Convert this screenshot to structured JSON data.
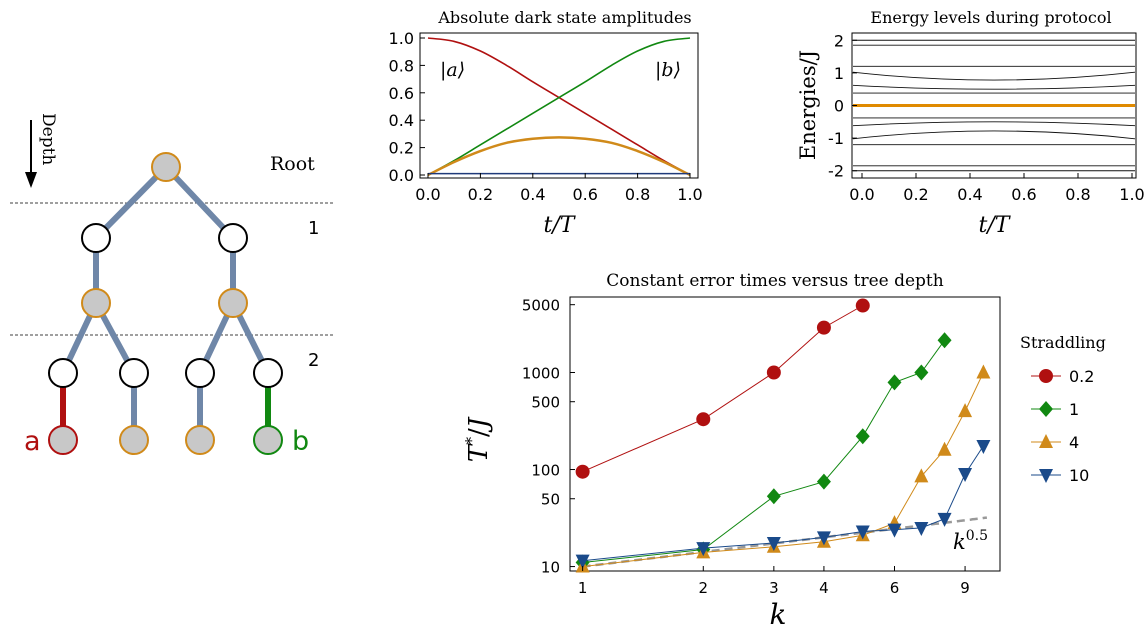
{
  "tree": {
    "depth_label": "Depth",
    "root_label": "Root",
    "level_labels": [
      "1",
      "2"
    ],
    "leaf_a_label": "a",
    "leaf_b_label": "b",
    "colors": {
      "edge": "#6f87a8",
      "edge_a": "#b01010",
      "edge_b": "#118811",
      "node_gray_fill": "#c8c8c8",
      "node_gray_stroke": "#d08a1a"
    }
  },
  "chart_data": [
    {
      "type": "line",
      "title": "Absolute dark state amplitudes",
      "xlabel": "t/T",
      "ylabel": "",
      "xlim": [
        0,
        1
      ],
      "ylim": [
        0,
        1
      ],
      "xticks": [
        "0.0",
        "0.2",
        "0.4",
        "0.6",
        "0.8",
        "1.0"
      ],
      "yticks": [
        "0.0",
        "0.2",
        "0.4",
        "0.6",
        "0.8",
        "1.0"
      ],
      "annotations": [
        "|a⟩",
        "|b⟩"
      ],
      "x": [
        0,
        0.1,
        0.2,
        0.3,
        0.4,
        0.5,
        0.6,
        0.7,
        0.8,
        0.9,
        1.0
      ],
      "series": [
        {
          "color": "#b01010",
          "values": [
            1.0,
            0.975,
            0.905,
            0.8,
            0.68,
            0.565,
            0.45,
            0.335,
            0.22,
            0.105,
            0.0
          ]
        },
        {
          "color": "#118811",
          "values": [
            0.0,
            0.105,
            0.22,
            0.335,
            0.45,
            0.565,
            0.68,
            0.8,
            0.905,
            0.975,
            1.0
          ]
        },
        {
          "color": "#d08a1a",
          "values": [
            0.0,
            0.095,
            0.175,
            0.235,
            0.265,
            0.275,
            0.265,
            0.235,
            0.175,
            0.095,
            0.0
          ]
        },
        {
          "color": "#1f3a7a",
          "values": [
            0.01,
            0.01,
            0.01,
            0.01,
            0.01,
            0.01,
            0.01,
            0.01,
            0.01,
            0.01,
            0.01
          ]
        }
      ]
    },
    {
      "type": "line",
      "title": "Energy levels during protocol",
      "xlabel": "t/T",
      "ylabel": "Energies/J",
      "xlim": [
        0,
        1
      ],
      "ylim": [
        -2.15,
        2.15
      ],
      "xticks": [
        "0.0",
        "0.2",
        "0.4",
        "0.6",
        "0.8",
        "1.0"
      ],
      "yticks": [
        "-2",
        "-1",
        "0",
        "1",
        "2"
      ],
      "ytick_values": [
        -2,
        -1,
        0,
        1,
        2
      ],
      "levels": [
        {
          "start": 2.0,
          "mid": 2.0
        },
        {
          "start": 1.85,
          "mid": 1.85
        },
        {
          "start": 1.2,
          "mid": 1.2
        },
        {
          "start": 1.02,
          "mid": 0.78
        },
        {
          "start": 0.62,
          "mid": 0.5
        },
        {
          "start": 0.38,
          "mid": 0.38
        },
        {
          "start": -0.38,
          "mid": -0.38
        },
        {
          "start": -0.62,
          "mid": -0.5
        },
        {
          "start": -1.02,
          "mid": -0.78
        },
        {
          "start": -1.2,
          "mid": -1.2
        },
        {
          "start": -1.85,
          "mid": -1.85
        },
        {
          "start": -2.0,
          "mid": -2.0
        }
      ],
      "highlight": {
        "value": 0,
        "color": "#e08a00"
      }
    },
    {
      "type": "line",
      "title": "Constant error times versus tree depth",
      "xlabel": "k",
      "ylabel": "T*/J",
      "xscale": "log",
      "yscale": "log",
      "xlim": [
        0.93,
        11
      ],
      "ylim": [
        9,
        6000
      ],
      "xticks": [
        1,
        2,
        3,
        4,
        6,
        9
      ],
      "yticks": [
        10,
        50,
        100,
        500,
        1000,
        5000
      ],
      "legend_title": "Straddling",
      "legend_position": "right",
      "series": [
        {
          "name": "0.2",
          "color": "#b01010",
          "marker": "circle",
          "x": [
            1,
            2,
            3,
            4,
            5
          ],
          "values": [
            95,
            330,
            1000,
            2900,
            4900
          ]
        },
        {
          "name": "1",
          "color": "#118811",
          "marker": "diamond",
          "x": [
            1,
            2,
            3,
            4,
            5,
            6,
            7,
            8
          ],
          "values": [
            11,
            15,
            53,
            75,
            220,
            790,
            1000,
            2150
          ]
        },
        {
          "name": "4",
          "color": "#d08a1a",
          "marker": "triangle-up",
          "x": [
            1,
            2,
            3,
            4,
            5,
            6,
            7,
            8,
            9,
            10
          ],
          "values": [
            10,
            14,
            16,
            18,
            21,
            28,
            85,
            160,
            400,
            1000
          ]
        },
        {
          "name": "10",
          "color": "#1a4a8a",
          "marker": "triangle-down",
          "x": [
            1,
            2,
            3,
            4,
            5,
            6,
            7,
            8,
            9,
            10
          ],
          "values": [
            11.5,
            15.5,
            17.5,
            20,
            23,
            24,
            25,
            31,
            90,
            175
          ]
        }
      ],
      "reference": {
        "label": "k^0.5",
        "base": "k",
        "exponent": "0.5",
        "coef": 10,
        "color": "#999999"
      }
    }
  ]
}
